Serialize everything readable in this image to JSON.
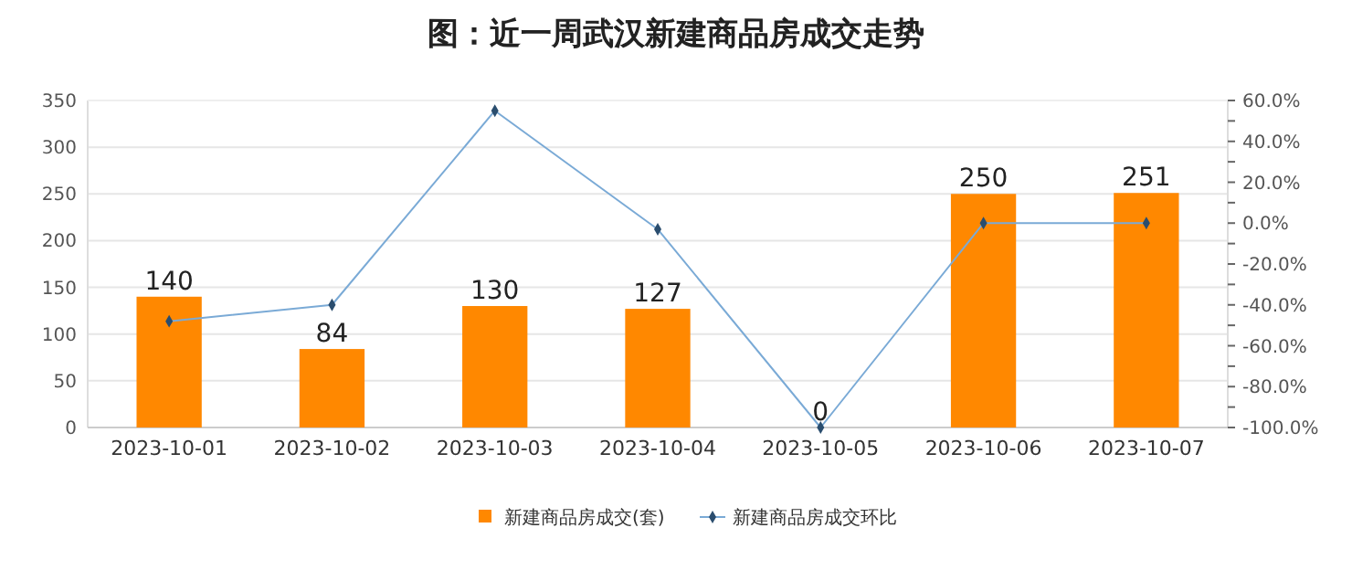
{
  "chart_data": {
    "type": "bar",
    "title": "图：近一周武汉新建商品房成交走势",
    "categories": [
      "2023-10-01",
      "2023-10-02",
      "2023-10-03",
      "2023-10-04",
      "2023-10-05",
      "2023-10-06",
      "2023-10-07"
    ],
    "series": [
      {
        "name": "新建商品房成交(套)",
        "color": "#ff8800",
        "values": [
          140,
          84,
          130,
          127,
          0,
          250,
          251
        ]
      },
      {
        "name": "新建商品房成交环比",
        "type": "line",
        "axis": "y2",
        "color": "#7aaad6",
        "marker": "diamond",
        "values": [
          -48,
          -40,
          55,
          -3,
          -100,
          0,
          0
        ]
      }
    ],
    "ylim": [
      0,
      350
    ],
    "yticks": [
      0,
      50,
      100,
      150,
      200,
      250,
      300,
      350
    ],
    "y2lim": [
      -100,
      60
    ],
    "y2ticks": [
      {
        "value": -100,
        "label": "-100.0%"
      },
      {
        "value": -90,
        "label": null
      },
      {
        "value": -80,
        "label": "-80.0%"
      },
      {
        "value": -70,
        "label": null
      },
      {
        "value": -60,
        "label": "-60.0%"
      },
      {
        "value": -50,
        "label": null
      },
      {
        "value": -40,
        "label": "-40.0%"
      },
      {
        "value": -30,
        "label": null
      },
      {
        "value": -20,
        "label": "-20.0%"
      },
      {
        "value": -10,
        "label": null
      },
      {
        "value": 0,
        "label": "0.0%"
      },
      {
        "value": 10,
        "label": null
      },
      {
        "value": 20,
        "label": "20.0%"
      },
      {
        "value": 30,
        "label": null
      },
      {
        "value": 40,
        "label": "40.0%"
      },
      {
        "value": 50,
        "label": null
      },
      {
        "value": 60,
        "label": "60.0%"
      }
    ],
    "value_labels": [
      "140",
      "84",
      "130",
      "127",
      "0",
      "250",
      "251"
    ],
    "grid": "y",
    "legend": "bottom"
  }
}
